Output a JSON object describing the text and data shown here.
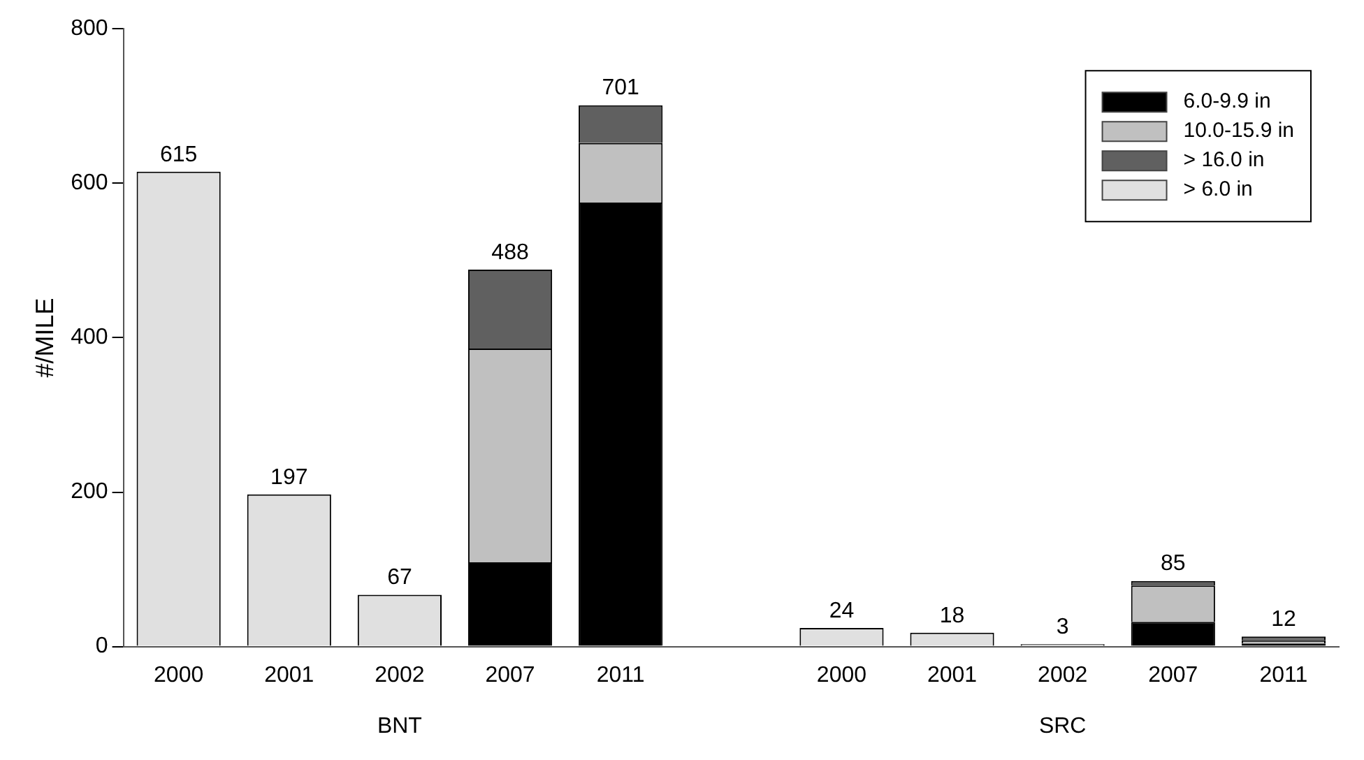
{
  "chart_data": {
    "type": "bar",
    "stacked": true,
    "ylabel": "#/MILE",
    "categories": [
      "2000",
      "2001",
      "2002",
      "2007",
      "2011",
      null,
      "2000",
      "2001",
      "2002",
      "2007",
      "2011"
    ],
    "series": [
      {
        "name": "6.0-9.9 in",
        "color": "#000000",
        "values": [
          null,
          null,
          null,
          109,
          575,
          null,
          null,
          null,
          null,
          32,
          4
        ]
      },
      {
        "name": "10.0-15.9 in",
        "color": "#c0c0c0",
        "values": [
          null,
          null,
          null,
          277,
          77,
          null,
          null,
          null,
          null,
          47,
          4
        ]
      },
      {
        "name": "> 16.0 in",
        "color": "#606060",
        "values": [
          null,
          null,
          null,
          102,
          49,
          null,
          null,
          null,
          null,
          6,
          5
        ]
      },
      {
        "name": "> 6.0 in",
        "color": "#e0e0e0",
        "values": [
          615,
          197,
          67,
          null,
          null,
          null,
          24,
          18,
          3,
          null,
          null
        ]
      }
    ],
    "totals": [
      "615",
      "197",
      "67",
      "488",
      "701",
      null,
      "24",
      "18",
      "3",
      "85",
      "12"
    ],
    "ylim": [
      0,
      800
    ],
    "yticks": [
      0,
      200,
      400,
      600,
      800
    ],
    "grid": false,
    "legend": "top right",
    "annotations": [
      "BNT",
      "SRC"
    ]
  }
}
